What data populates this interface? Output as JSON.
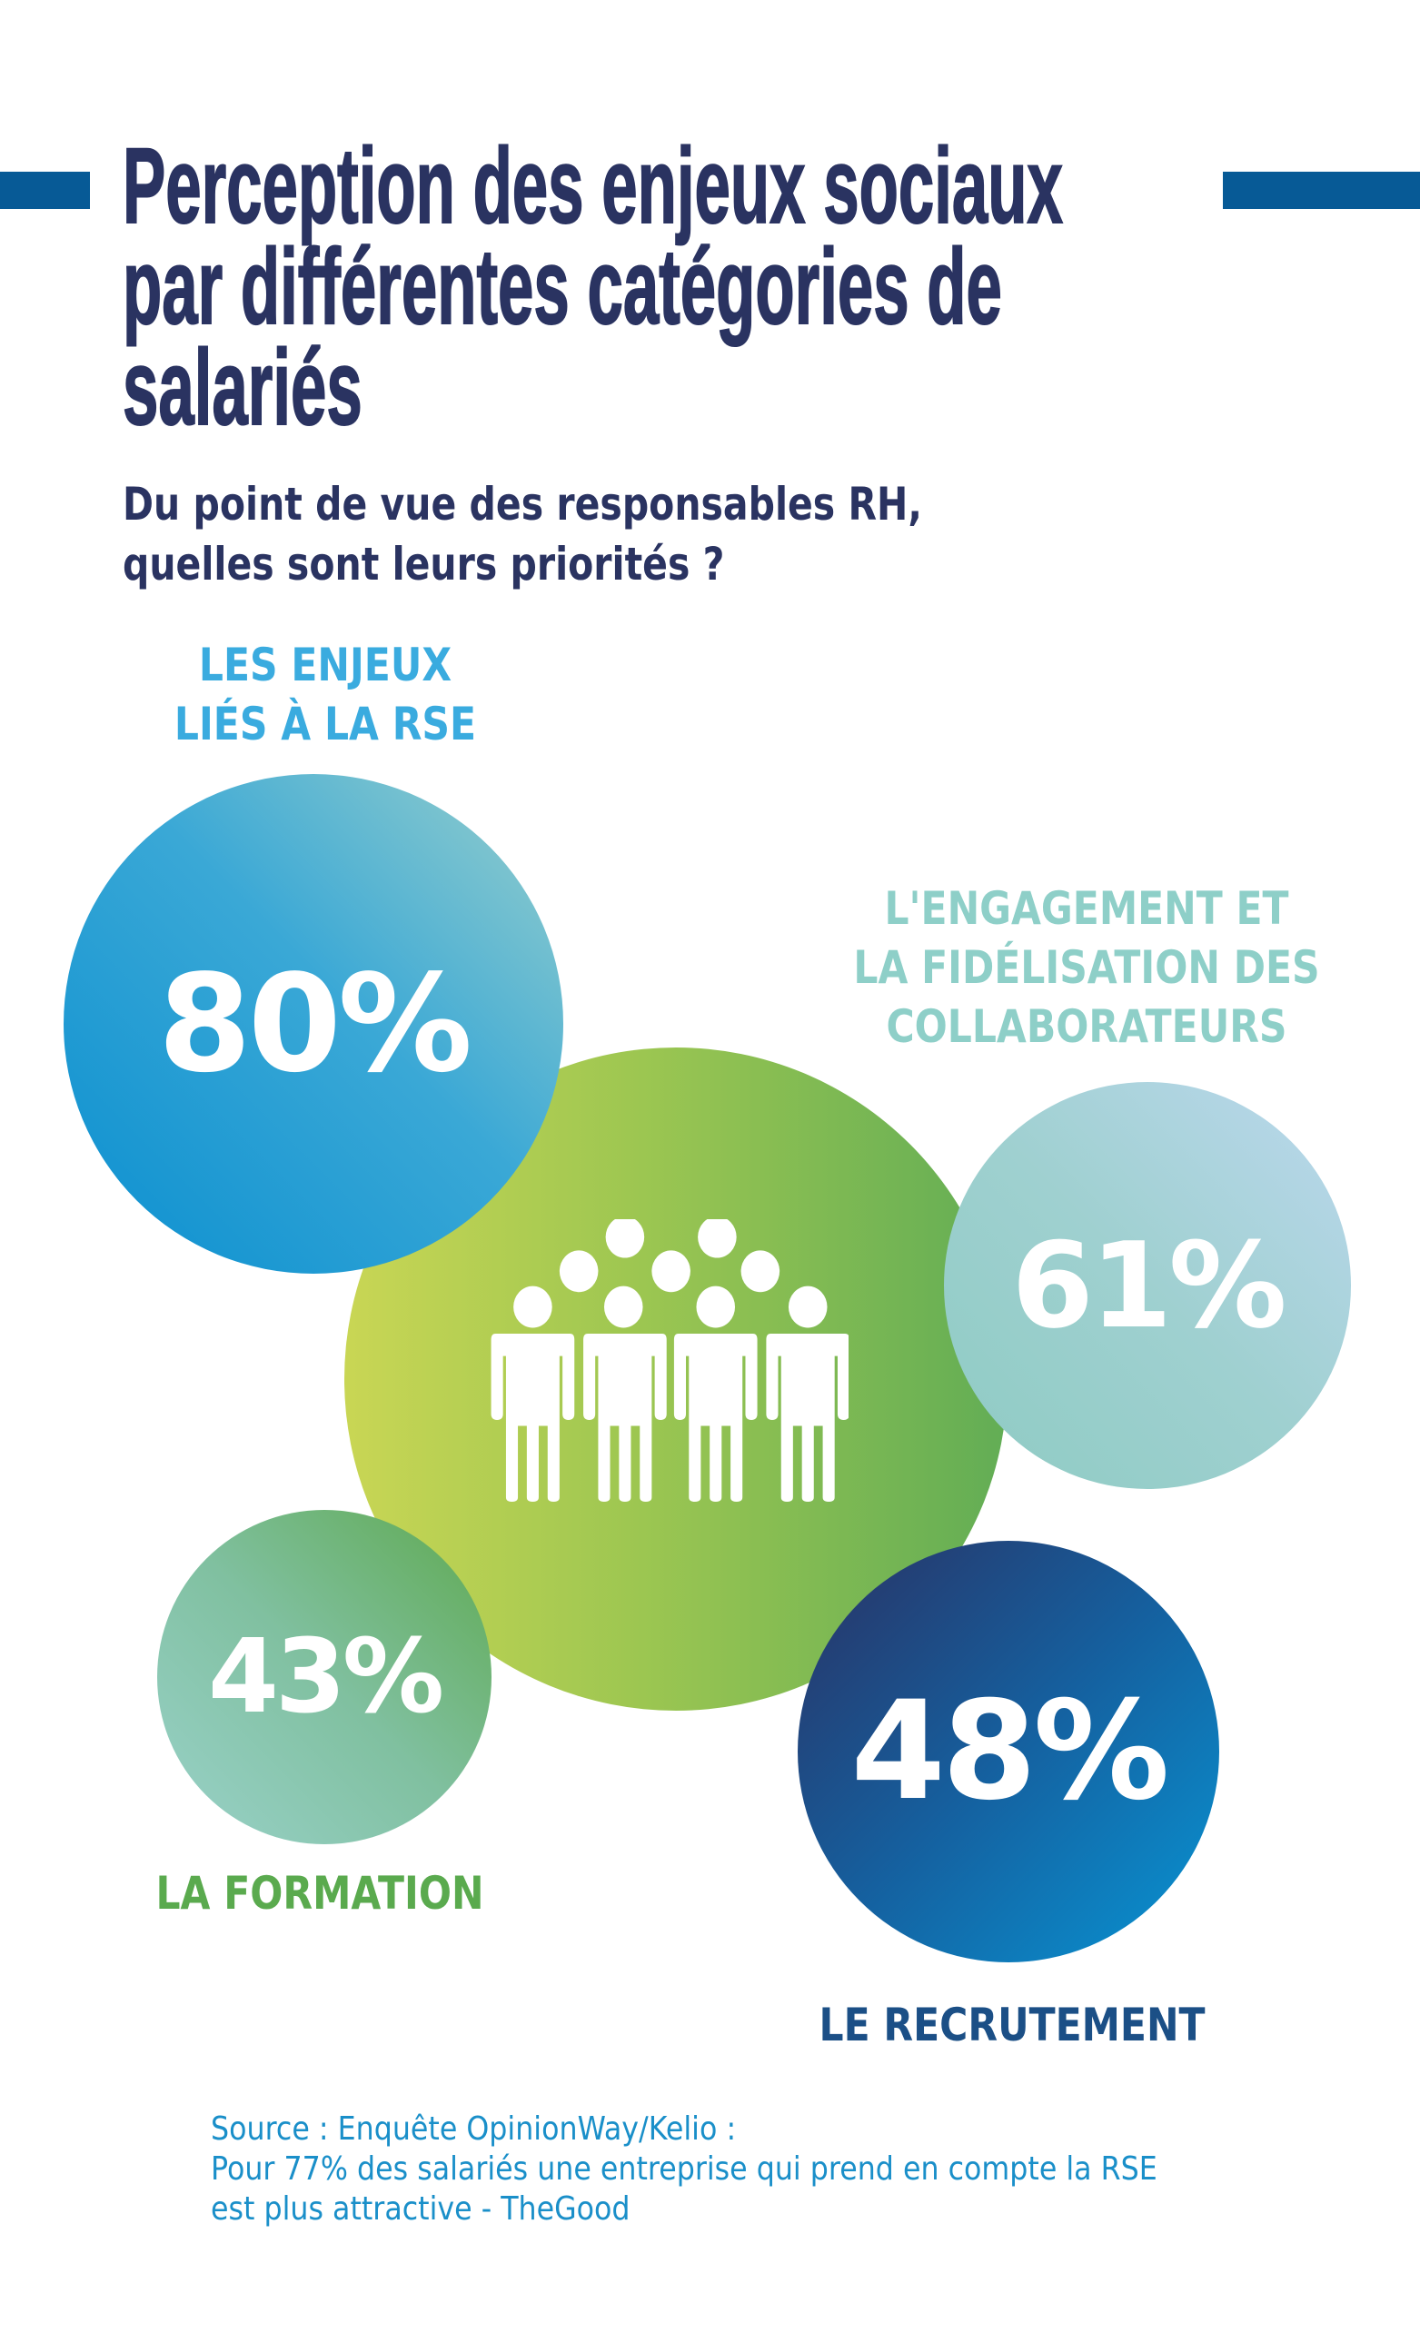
{
  "title": {
    "lines": [
      "Perception des enjeux sociaux",
      "par différentes catégories de",
      "salariés"
    ]
  },
  "subtitle": {
    "lines": [
      "Du point de vue des responsables RH,",
      "quelles sont leurs priorités ?"
    ]
  },
  "items": [
    {
      "label_lines": [
        "LES ENJEUX",
        "LIÉS À LA RSE"
      ],
      "value": "80%",
      "color": "#3aabdf"
    },
    {
      "label_lines": [
        "L'ENGAGEMENT ET",
        "LA FIDÉLISATION DES",
        "COLLABORATEURS"
      ],
      "value": "61%",
      "color": "#8ecfc8"
    },
    {
      "label_lines": [
        "LA FORMATION"
      ],
      "value": "43%",
      "color": "#5aaa4e"
    },
    {
      "label_lines": [
        "LE RECRUTEMENT"
      ],
      "value": "48%",
      "color": "#1b4f86"
    }
  ],
  "center_icon": "group-of-people-icon",
  "source": {
    "lines": [
      "Source : Enquête OpinionWay/Kelio :",
      "Pour 77% des salariés une entreprise qui prend en compte la RSE",
      "est plus attractive - TheGood"
    ]
  },
  "colors": {
    "title": "#2a3361",
    "accent_bar": "#075a96",
    "source": "#1a8fc9"
  }
}
